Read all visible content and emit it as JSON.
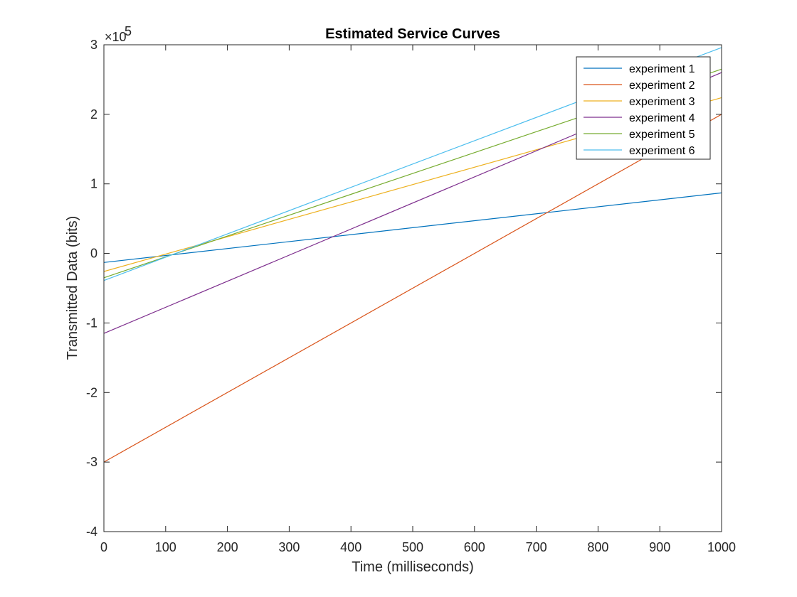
{
  "chart_data": {
    "type": "line",
    "title": "Estimated Service Curves",
    "xlabel": "Time (milliseconds)",
    "ylabel": "Transmitted Data (bits)",
    "xlim": [
      0,
      1000
    ],
    "ylim": [
      -400000,
      300000
    ],
    "y_exponent_label": "×10",
    "y_exponent_power": "5",
    "x_ticks": [
      0,
      100,
      200,
      300,
      400,
      500,
      600,
      700,
      800,
      900,
      1000
    ],
    "x_tick_labels": [
      "0",
      "100",
      "200",
      "300",
      "400",
      "500",
      "600",
      "700",
      "800",
      "900",
      "1000"
    ],
    "y_ticks": [
      -400000,
      -300000,
      -200000,
      -100000,
      0,
      100000,
      200000,
      300000
    ],
    "y_tick_labels": [
      "-4",
      "-3",
      "-2",
      "-1",
      "0",
      "1",
      "2",
      "3"
    ],
    "grid": false,
    "legend_position": "top-right",
    "series": [
      {
        "name": "experiment 1",
        "color": "#0072BD",
        "x": [
          0,
          1000
        ],
        "y": [
          -13000,
          87000
        ]
      },
      {
        "name": "experiment 2",
        "color": "#D95319",
        "x": [
          0,
          1000
        ],
        "y": [
          -300000,
          200000
        ]
      },
      {
        "name": "experiment 3",
        "color": "#EDB120",
        "x": [
          0,
          1000
        ],
        "y": [
          -26000,
          224000
        ]
      },
      {
        "name": "experiment 4",
        "color": "#7E2F8E",
        "x": [
          0,
          1000
        ],
        "y": [
          -115000,
          260000
        ]
      },
      {
        "name": "experiment 5",
        "color": "#77AC30",
        "x": [
          0,
          1000
        ],
        "y": [
          -35000,
          265000
        ]
      },
      {
        "name": "experiment 6",
        "color": "#4DBEEE",
        "x": [
          0,
          1000
        ],
        "y": [
          -39000,
          296000
        ]
      }
    ]
  }
}
